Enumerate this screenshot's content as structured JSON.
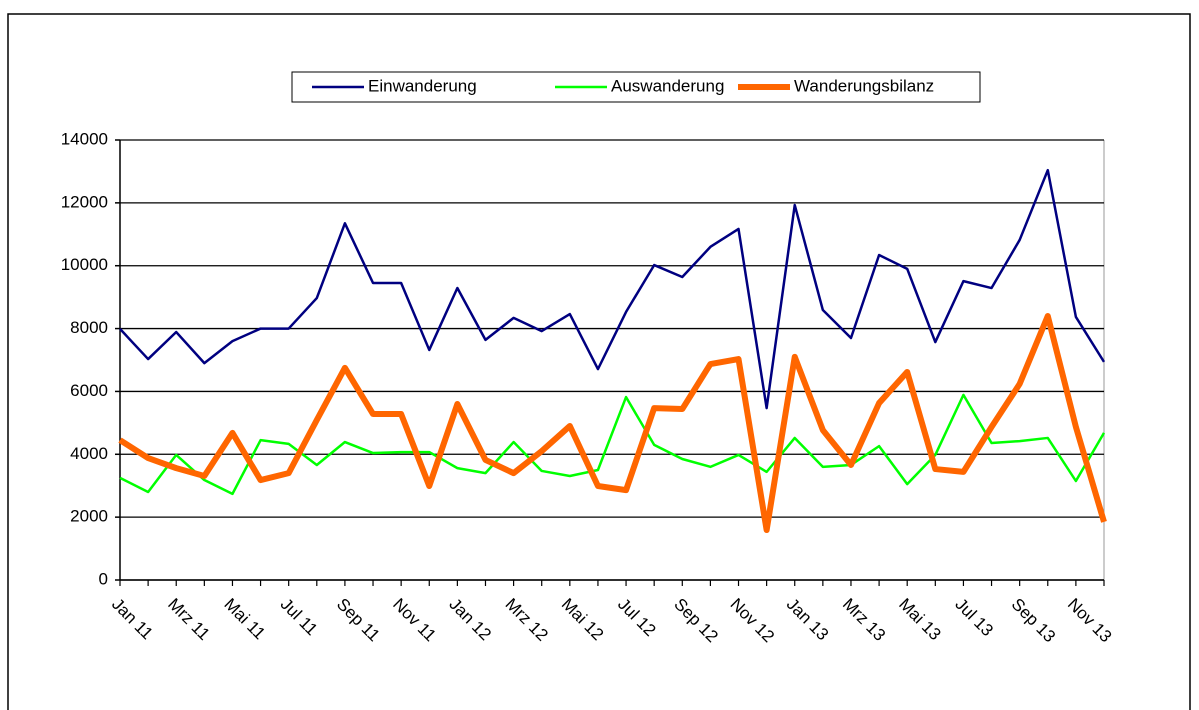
{
  "chart_data": {
    "type": "line",
    "categories": [
      "Jan 11",
      null,
      "Mrz 11",
      null,
      "Mai 11",
      null,
      "Jul 11",
      null,
      "Sep 11",
      null,
      "Nov 11",
      null,
      "Jan 12",
      null,
      "Mrz 12",
      null,
      "Mai 12",
      null,
      "Jul 12",
      null,
      "Sep 12",
      null,
      "Nov 12",
      null,
      "Jan 13",
      null,
      "Mrz 13",
      null,
      "Mai 13",
      null,
      "Jul 13",
      null,
      "Sep 13",
      null,
      "Nov 13",
      null
    ],
    "series": [
      {
        "name": "Einwanderung",
        "color": "#000080",
        "line_width": 2.5,
        "values": [
          7990,
          7030,
          7890,
          6900,
          7600,
          8000,
          8000,
          8970,
          11350,
          9450,
          9450,
          7320,
          9290,
          7640,
          8340,
          7920,
          8460,
          6710,
          8530,
          10020,
          9640,
          10600,
          11170,
          5470,
          11930,
          8590,
          7700,
          10340,
          9900,
          7570,
          9510,
          9290,
          10820,
          13040,
          8370,
          6940
        ]
      },
      {
        "name": "Auswanderung",
        "color": "#00ff00",
        "line_width": 2.5,
        "values": [
          3250,
          2800,
          3980,
          3180,
          2740,
          4450,
          4330,
          3660,
          4390,
          4040,
          4070,
          4070,
          3560,
          3400,
          4390,
          3470,
          3310,
          3500,
          5820,
          4300,
          3850,
          3600,
          3980,
          3440,
          4520,
          3600,
          3660,
          4260,
          3050,
          3980,
          5890,
          4360,
          4420,
          4520,
          3150,
          4680
        ]
      },
      {
        "name": "Wanderungsbilanz",
        "color": "#ff6600",
        "line_width": 6,
        "values": [
          4450,
          3880,
          3560,
          3310,
          4680,
          3180,
          3400,
          5090,
          6750,
          5280,
          5280,
          2990,
          5600,
          3820,
          3400,
          4100,
          4900,
          2990,
          2860,
          5470,
          5440,
          6870,
          7030,
          1590,
          7100,
          4770,
          3660,
          5630,
          6620,
          3530,
          3440,
          4870,
          6240,
          8400,
          4870,
          1850
        ]
      }
    ],
    "ylim": [
      0,
      14000
    ],
    "yticks": [
      0,
      2000,
      4000,
      6000,
      8000,
      10000,
      12000,
      14000
    ],
    "grid": true
  }
}
